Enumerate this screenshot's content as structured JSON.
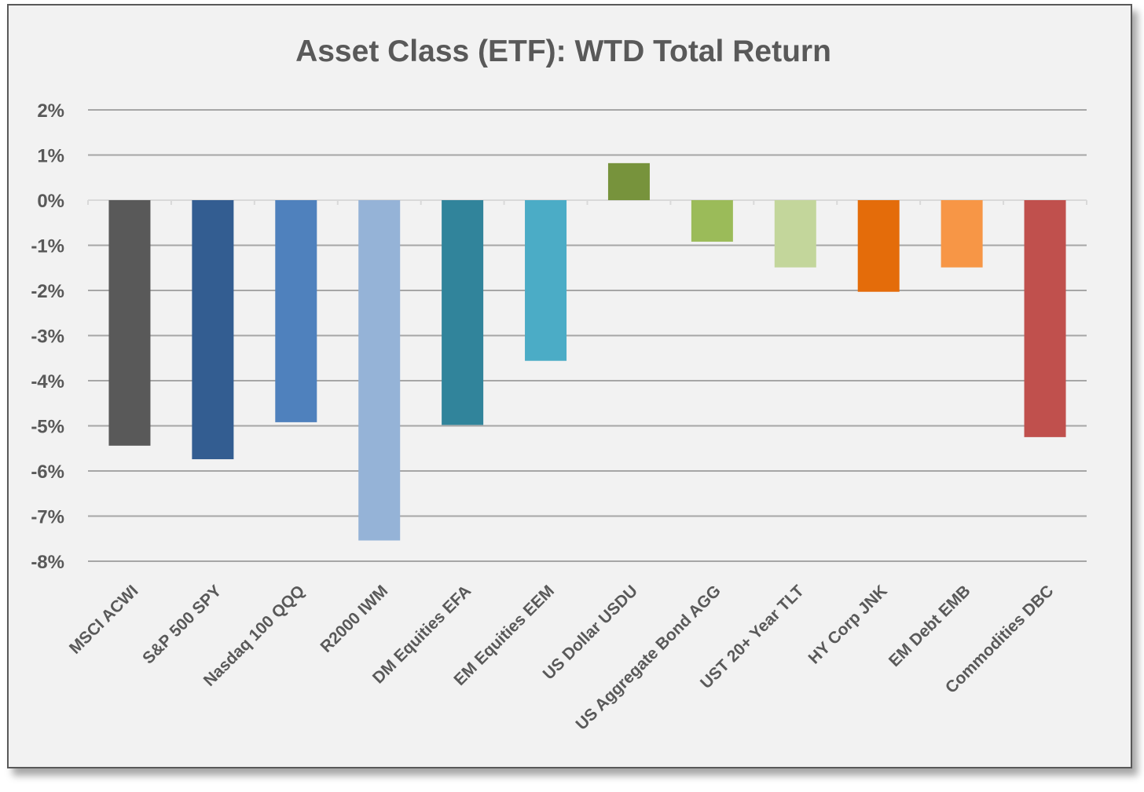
{
  "chart_data": {
    "type": "bar",
    "title": "Asset Class (ETF): WTD Total Return",
    "xlabel": "",
    "ylabel": "",
    "ylim": [
      -8,
      2
    ],
    "yticks": [
      2,
      1,
      0,
      -1,
      -2,
      -3,
      -4,
      -5,
      -6,
      -7,
      -8
    ],
    "ytick_labels": [
      "2%",
      "1%",
      "0%",
      "-1%",
      "-2%",
      "-3%",
      "-4%",
      "-5%",
      "-6%",
      "-7%",
      "-8%"
    ],
    "grid": true,
    "legend": "none",
    "categories": [
      "MSCI ACWI",
      "S&P 500 SPY",
      "Nasdaq 100 QQQ",
      "R2000 IWM",
      "DM Equities EFA",
      "EM Equities EEM",
      "US Dollar USDU",
      "US Aggregate Bond AGG",
      "UST 20+ Year TLT",
      "HY Corp JNK",
      "EM Debt EMB",
      "Commodities DBC"
    ],
    "values": [
      -5.44,
      -5.74,
      -4.92,
      -7.54,
      -4.98,
      -3.56,
      0.82,
      -0.92,
      -1.49,
      -2.03,
      -1.49,
      -5.25
    ],
    "colors": [
      "#595959",
      "#335d91",
      "#4f81bd",
      "#95b3d7",
      "#31849b",
      "#4bacc6",
      "#77933c",
      "#9bbb59",
      "#c3d69b",
      "#e46c0a",
      "#f79646",
      "#c0504d"
    ]
  }
}
